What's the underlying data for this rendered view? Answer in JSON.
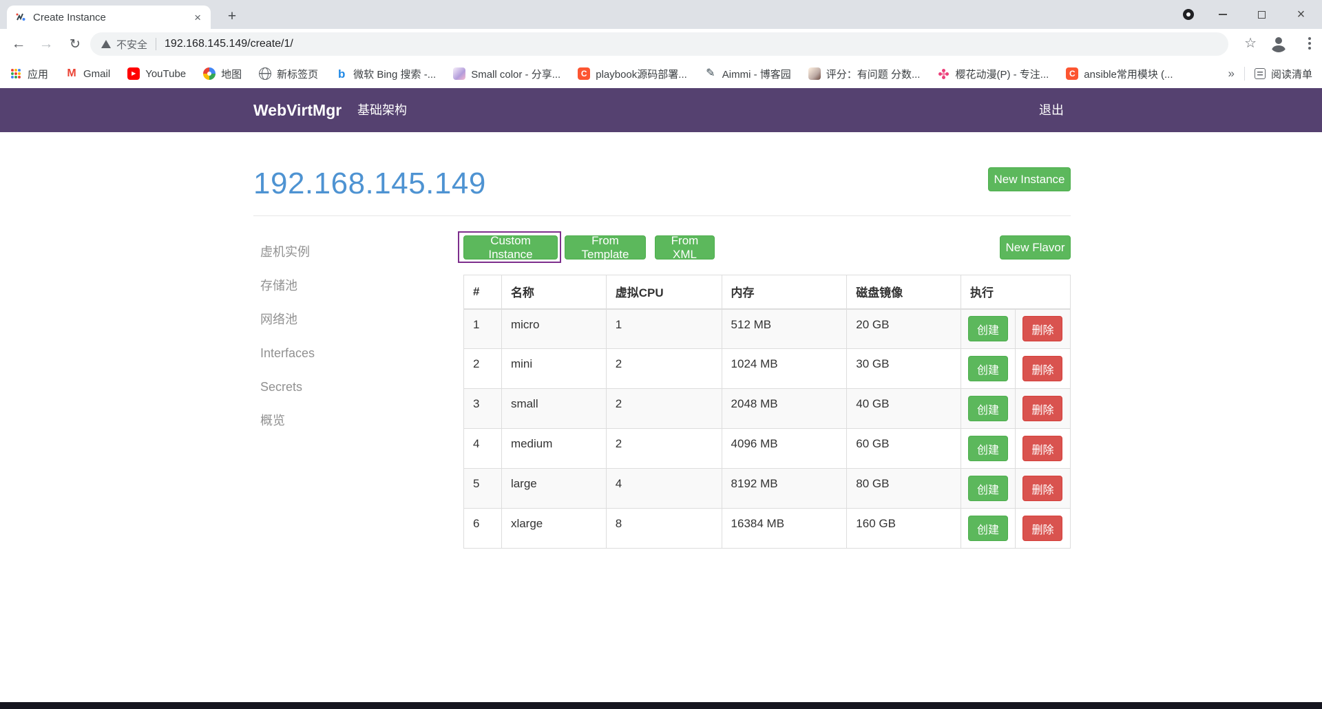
{
  "browser": {
    "tab": {
      "title": "Create Instance"
    },
    "new_tab_label": "+",
    "address": {
      "security_label": "不安全",
      "url": "192.168.145.149/create/1/"
    },
    "bookmarks": [
      {
        "icon": "apps-grid",
        "glyph": "",
        "label": "应用"
      },
      {
        "icon": "gmail",
        "glyph": "M",
        "label": "Gmail"
      },
      {
        "icon": "youtube",
        "glyph": "▶",
        "label": "YouTube"
      },
      {
        "icon": "maps",
        "glyph": "",
        "label": "地图"
      },
      {
        "icon": "globe",
        "glyph": "",
        "label": "新标签页"
      },
      {
        "icon": "bing",
        "glyph": "b",
        "label": "微软 Bing 搜索 -..."
      },
      {
        "icon": "avatar-pink",
        "glyph": "",
        "label": "Small color - 分享..."
      },
      {
        "icon": "csdn",
        "glyph": "C",
        "label": "playbook源码部署..."
      },
      {
        "icon": "pen",
        "glyph": "✎",
        "label": "Aimmi - 博客园"
      },
      {
        "icon": "avatar-tan",
        "glyph": "",
        "label": "评分：有问题 分数..."
      },
      {
        "icon": "flower",
        "glyph": "",
        "label": "樱花动漫(P) - 专注..."
      },
      {
        "icon": "csdn",
        "glyph": "C",
        "label": "ansible常用模块 (..."
      }
    ],
    "overflow_chevron": "»",
    "reading_list_label": "阅读清单"
  },
  "navbar": {
    "brand": "WebVirtMgr",
    "menu_item": "基础架构",
    "logout": "退出"
  },
  "page": {
    "heading": "192.168.145.149",
    "new_instance_label": "New Instance",
    "sidebar": {
      "items": [
        "虚机实例",
        "存储池",
        "网络池",
        "Interfaces",
        "Secrets",
        "概览"
      ]
    },
    "toolbar": {
      "custom_instance": "Custom Instance",
      "from_template": "From Template",
      "from_xml": "From XML",
      "new_flavor": "New Flavor"
    },
    "table": {
      "headers": [
        "#",
        "名称",
        "虚拟CPU",
        "内存",
        "磁盘镜像",
        "执行"
      ],
      "rows": [
        {
          "num": "1",
          "name": "micro",
          "vcpu": "1",
          "memory": "512 MB",
          "disk": "20 GB"
        },
        {
          "num": "2",
          "name": "mini",
          "vcpu": "2",
          "memory": "1024 MB",
          "disk": "30 GB"
        },
        {
          "num": "3",
          "name": "small",
          "vcpu": "2",
          "memory": "2048 MB",
          "disk": "40 GB"
        },
        {
          "num": "4",
          "name": "medium",
          "vcpu": "2",
          "memory": "4096 MB",
          "disk": "60 GB"
        },
        {
          "num": "5",
          "name": "large",
          "vcpu": "4",
          "memory": "8192 MB",
          "disk": "80 GB"
        },
        {
          "num": "6",
          "name": "xlarge",
          "vcpu": "8",
          "memory": "16384 MB",
          "disk": "160 GB"
        }
      ],
      "create_label": "创建",
      "delete_label": "删除"
    },
    "colors": {
      "navbar": "#554170",
      "heading": "#4e93d2",
      "button_green": "#5cb85c",
      "button_red": "#d9534f",
      "highlight_outline": "#7d2e8c",
      "footer": "#15151e"
    }
  }
}
